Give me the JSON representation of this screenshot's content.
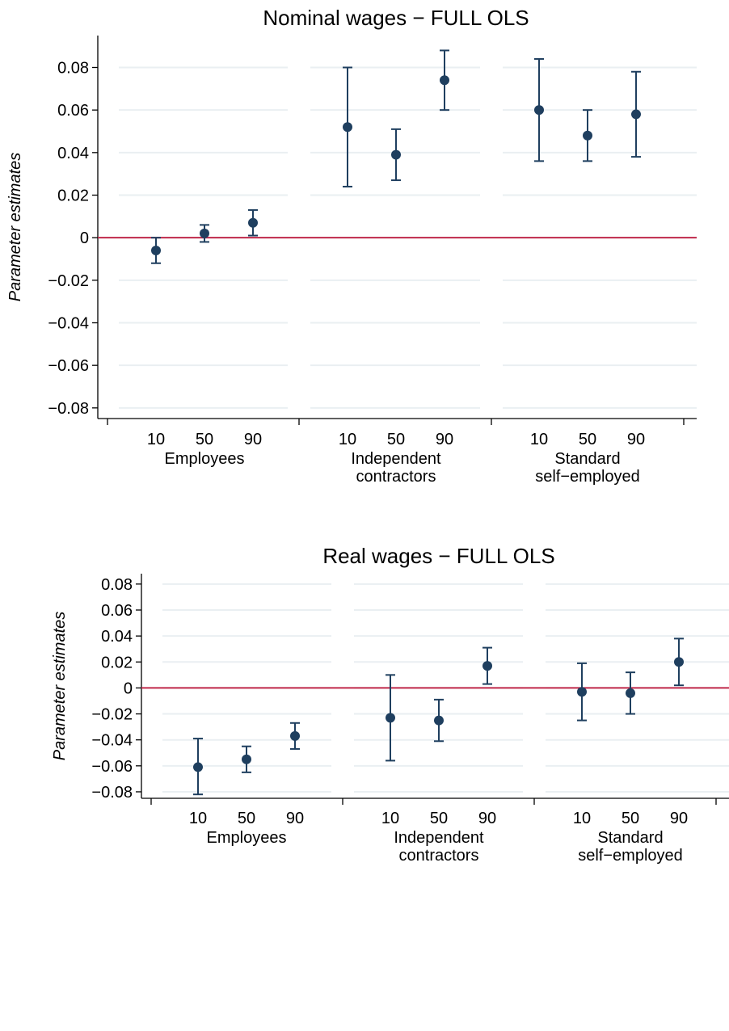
{
  "colors": {
    "marker": "#1f3f5f",
    "zero_line": "#c0284a",
    "grid": "#eaeff2",
    "axis": "#000000"
  },
  "chart_data": [
    {
      "type": "scatter",
      "title": "Nominal wages − FULL OLS",
      "ylabel": "Parameter estimates",
      "ylim": [
        -0.085,
        0.095
      ],
      "yticks": [
        0.08,
        0.06,
        0.04,
        0.02,
        0,
        -0.02,
        -0.04,
        -0.06,
        -0.08
      ],
      "ytick_labels": [
        "0.08",
        "0.06",
        "0.04",
        "0.02",
        "0",
        "−0.02",
        "−0.04",
        "−0.06",
        "−0.08"
      ],
      "reference_line": 0,
      "grid": true,
      "groups": [
        {
          "label_lines": [
            "Employees"
          ],
          "points": [
            {
              "label": "10",
              "y": -0.006,
              "lo": -0.012,
              "hi": 0.0
            },
            {
              "label": "50",
              "y": 0.002,
              "lo": -0.002,
              "hi": 0.006
            },
            {
              "label": "90",
              "y": 0.007,
              "lo": 0.001,
              "hi": 0.013
            }
          ]
        },
        {
          "label_lines": [
            "Independent",
            "contractors"
          ],
          "points": [
            {
              "label": "10",
              "y": 0.052,
              "lo": 0.024,
              "hi": 0.08
            },
            {
              "label": "50",
              "y": 0.039,
              "lo": 0.027,
              "hi": 0.051
            },
            {
              "label": "90",
              "y": 0.074,
              "lo": 0.06,
              "hi": 0.088
            }
          ]
        },
        {
          "label_lines": [
            "Standard",
            "self−employed"
          ],
          "points": [
            {
              "label": "10",
              "y": 0.06,
              "lo": 0.036,
              "hi": 0.084
            },
            {
              "label": "50",
              "y": 0.048,
              "lo": 0.036,
              "hi": 0.06
            },
            {
              "label": "90",
              "y": 0.058,
              "lo": 0.038,
              "hi": 0.078
            }
          ]
        }
      ]
    },
    {
      "type": "scatter",
      "title": "Real wages − FULL OLS",
      "ylabel": "Parameter estimates",
      "ylim": [
        -0.085,
        0.088
      ],
      "yticks": [
        0.08,
        0.06,
        0.04,
        0.02,
        0,
        -0.02,
        -0.04,
        -0.06,
        -0.08
      ],
      "ytick_labels": [
        "0.08",
        "0.06",
        "0.04",
        "0.02",
        "0",
        "−0.02",
        "−0.04",
        "−0.06",
        "−0.08"
      ],
      "reference_line": 0,
      "grid": true,
      "groups": [
        {
          "label_lines": [
            "Employees"
          ],
          "points": [
            {
              "label": "10",
              "y": -0.061,
              "lo": -0.082,
              "hi": -0.039
            },
            {
              "label": "50",
              "y": -0.055,
              "lo": -0.065,
              "hi": -0.045
            },
            {
              "label": "90",
              "y": -0.037,
              "lo": -0.047,
              "hi": -0.027
            }
          ]
        },
        {
          "label_lines": [
            "Independent",
            "contractors"
          ],
          "points": [
            {
              "label": "10",
              "y": -0.023,
              "lo": -0.056,
              "hi": 0.01
            },
            {
              "label": "50",
              "y": -0.025,
              "lo": -0.041,
              "hi": -0.009
            },
            {
              "label": "90",
              "y": 0.017,
              "lo": 0.003,
              "hi": 0.031
            }
          ]
        },
        {
          "label_lines": [
            "Standard",
            "self−employed"
          ],
          "points": [
            {
              "label": "10",
              "y": -0.003,
              "lo": -0.025,
              "hi": 0.019
            },
            {
              "label": "50",
              "y": -0.004,
              "lo": -0.02,
              "hi": 0.012
            },
            {
              "label": "90",
              "y": 0.02,
              "lo": 0.002,
              "hi": 0.038
            }
          ]
        }
      ]
    }
  ]
}
